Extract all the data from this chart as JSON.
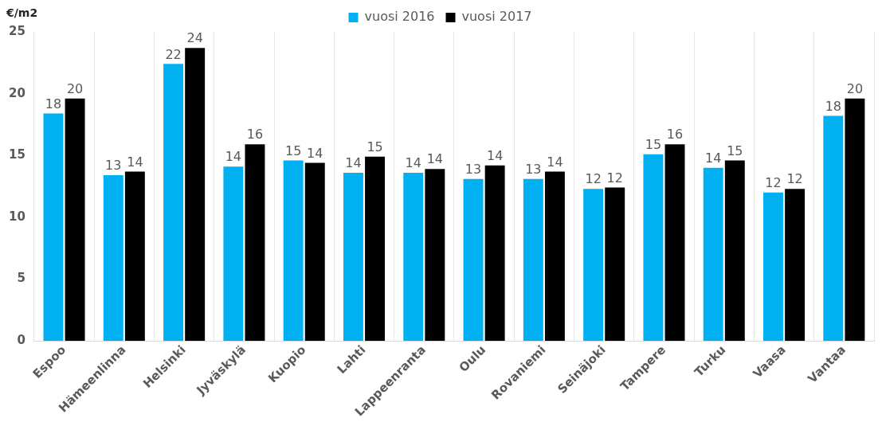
{
  "chart_data": {
    "type": "bar",
    "ylabel": "€/m2",
    "categories": [
      "Espoo",
      "Hämeenlinna",
      "Helsinki",
      "Jyväskylä",
      "Kuopio",
      "Lahti",
      "Lappeenranta",
      "Oulu",
      "Rovaniemi",
      "Seinäjoki",
      "Tampere",
      "Turku",
      "Vaasa",
      "Vantaa"
    ],
    "series": [
      {
        "name": "vuosi 2016",
        "color": "#00b0f0",
        "values": [
          18.4,
          13.4,
          22.4,
          14.1,
          14.6,
          13.6,
          13.6,
          13.1,
          13.1,
          12.3,
          15.1,
          14.0,
          12.0,
          18.2
        ],
        "value_labels": [
          "18",
          "13",
          "22",
          "14",
          "15",
          "14",
          "14",
          "13",
          "13",
          "12",
          "15",
          "14",
          "12",
          "18"
        ]
      },
      {
        "name": "vuosi 2017",
        "color": "#000000",
        "values": [
          19.6,
          13.7,
          23.7,
          15.9,
          14.4,
          14.9,
          13.9,
          14.2,
          13.7,
          12.4,
          15.9,
          14.6,
          12.3,
          19.6
        ],
        "value_labels": [
          "20",
          "14",
          "24",
          "16",
          "14",
          "15",
          "14",
          "14",
          "14",
          "12",
          "16",
          "15",
          "12",
          "20"
        ]
      }
    ],
    "ylim": [
      0,
      25
    ],
    "yticks": [
      0,
      5,
      10,
      15,
      20,
      25
    ],
    "grid": "x",
    "legend": "top"
  }
}
